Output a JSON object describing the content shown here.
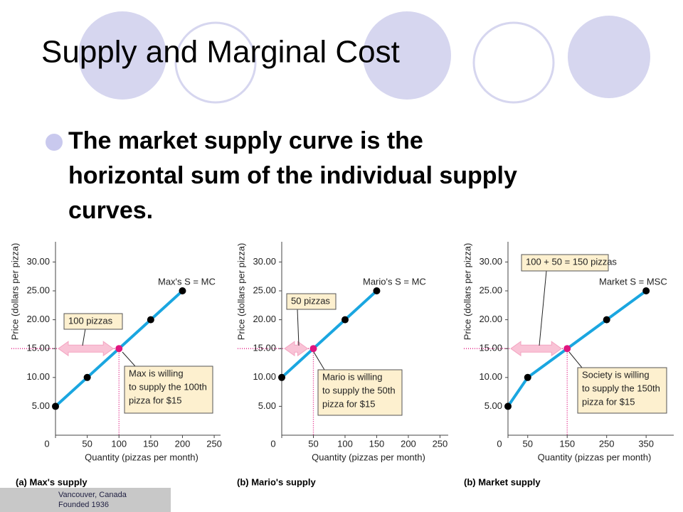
{
  "slide": {
    "title": "Supply and Marginal Cost",
    "bullet_lines": [
      "The market supply curve is the",
      "horizontal sum of the individual supply",
      "curves."
    ]
  },
  "chart_data": [
    {
      "type": "line",
      "caption": "(a) Max's supply",
      "x_label": "Quantity (pizzas per month)",
      "y_label": "Price (dollars per pizza)",
      "x": [
        0,
        50,
        100,
        150,
        200
      ],
      "series": [
        {
          "name": "Max's S = MC",
          "color": "#1aa6e0",
          "values": [
            5,
            10,
            15,
            20,
            25
          ]
        }
      ],
      "xlim": [
        0,
        260
      ],
      "xticks": [
        0,
        50,
        100,
        150,
        200,
        250
      ],
      "ylim": [
        0,
        33.5
      ],
      "yticks": [
        {
          "value": 5,
          "label": "5.00"
        },
        {
          "value": 10,
          "label": "10.00"
        },
        {
          "value": 15,
          "label": "15.00"
        },
        {
          "value": 20,
          "label": "20.00"
        },
        {
          "value": 25,
          "label": "25.00"
        },
        {
          "value": 30,
          "label": "30.00"
        }
      ],
      "highlight": {
        "x": 100,
        "y": 15,
        "color": "#e0157f"
      },
      "callouts": [
        {
          "lines": [
            "100 pizzas"
          ]
        },
        {
          "lines": [
            "Max is willing",
            "to supply the 100th",
            "pizza for $15"
          ]
        }
      ]
    },
    {
      "type": "line",
      "caption": "(b) Mario's supply",
      "x_label": "Quantity (pizzas per month)",
      "y_label": "Price (dollars per pizza)",
      "x": [
        0,
        50,
        100,
        150
      ],
      "series": [
        {
          "name": "Mario's S = MC",
          "color": "#1aa6e0",
          "values": [
            10,
            15,
            20,
            25
          ]
        }
      ],
      "xlim": [
        0,
        263
      ],
      "xticks": [
        0,
        50,
        100,
        150,
        200,
        250
      ],
      "ylim": [
        0,
        33.5
      ],
      "yticks": [
        {
          "value": 5,
          "label": "5.00"
        },
        {
          "value": 10,
          "label": "10.00"
        },
        {
          "value": 15,
          "label": "15.00"
        },
        {
          "value": 20,
          "label": "20.00"
        },
        {
          "value": 25,
          "label": "25.00"
        },
        {
          "value": 30,
          "label": "30.00"
        }
      ],
      "highlight": {
        "x": 50,
        "y": 15,
        "color": "#e0157f"
      },
      "callouts": [
        {
          "lines": [
            "50 pizzas"
          ]
        },
        {
          "lines": [
            "Mario is willing",
            "to supply the 50th",
            "pizza for $15"
          ]
        }
      ]
    },
    {
      "type": "line",
      "caption": "(b) Market supply",
      "x_label": "Quantity (pizzas per month)",
      "y_label": "Price (dollars per pizza)",
      "x": [
        0,
        50,
        150,
        250,
        350
      ],
      "series": [
        {
          "name": "Market S = MSC",
          "color": "#1aa6e0",
          "values": [
            5,
            10,
            15,
            20,
            25
          ]
        }
      ],
      "xlim": [
        0,
        420
      ],
      "xticks": [
        0,
        50,
        150,
        250,
        350
      ],
      "ylim": [
        0,
        33.5
      ],
      "yticks": [
        {
          "value": 5,
          "label": "5.00"
        },
        {
          "value": 10,
          "label": "10.00"
        },
        {
          "value": 15,
          "label": "15.00"
        },
        {
          "value": 20,
          "label": "20.00"
        },
        {
          "value": 25,
          "label": "25.00"
        },
        {
          "value": 30,
          "label": "30.00"
        }
      ],
      "highlight": {
        "x": 150,
        "y": 15,
        "color": "#e0157f"
      },
      "callouts": [
        {
          "lines": [
            "100 + 50 = 150 pizzas"
          ]
        },
        {
          "lines": [
            "Society is willing",
            "to supply the 150th",
            "pizza for $15"
          ]
        }
      ]
    }
  ],
  "logo": {
    "lines": [
      "Vancouver, Canada",
      "Founded 1936"
    ]
  }
}
